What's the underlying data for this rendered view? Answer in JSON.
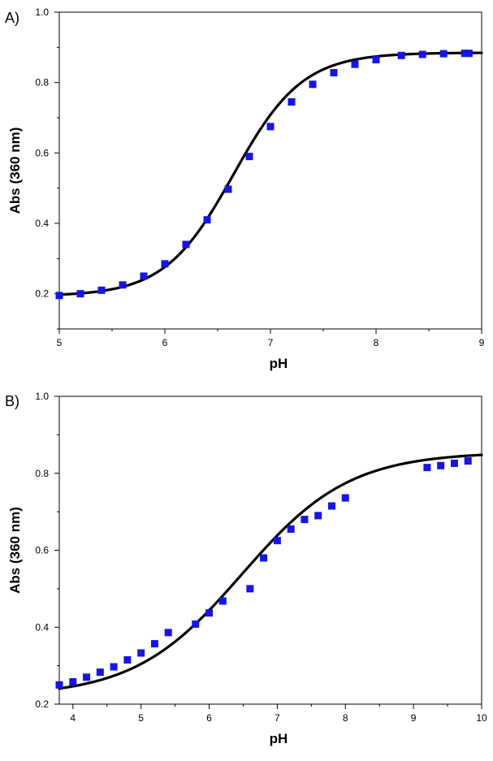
{
  "chart_data": [
    {
      "panel_label": "A)",
      "type": "scatter",
      "xlabel": "pH",
      "ylabel": "Abs (360 nm)",
      "xlim": [
        5,
        9
      ],
      "ylim": [
        0.1,
        1.0
      ],
      "x_ticks": [
        "5",
        "6",
        "7",
        "8",
        "9"
      ],
      "y_ticks": [
        "0.2",
        "0.4",
        "0.6",
        "0.8",
        "1.0"
      ],
      "series": [
        {
          "name": "data",
          "kind": "scatter",
          "color": "#1515e6",
          "x": [
            5.0,
            5.2,
            5.4,
            5.6,
            5.8,
            6.0,
            6.2,
            6.4,
            6.6,
            6.8,
            7.0,
            7.2,
            7.4,
            7.6,
            7.8,
            8.0,
            8.24,
            8.44,
            8.64,
            8.84,
            8.88
          ],
          "y": [
            0.195,
            0.2,
            0.21,
            0.225,
            0.25,
            0.285,
            0.34,
            0.41,
            0.497,
            0.59,
            0.675,
            0.745,
            0.795,
            0.828,
            0.852,
            0.865,
            0.877,
            0.88,
            0.882,
            0.883,
            0.883
          ]
        },
        {
          "name": "fit",
          "kind": "line",
          "color": "#000000",
          "model": {
            "bottom": 0.193,
            "top": 0.885,
            "pKa": 6.65,
            "slope": 1.33
          }
        }
      ]
    },
    {
      "panel_label": "B)",
      "type": "scatter",
      "xlabel": "pH",
      "ylabel": "Abs (360 nm)",
      "xlim": [
        3.8,
        10
      ],
      "ylim": [
        0.2,
        1.0
      ],
      "x_ticks": [
        "4",
        "5",
        "6",
        "7",
        "8",
        "9",
        "10"
      ],
      "y_ticks": [
        "0.2",
        "0.4",
        "0.6",
        "0.8",
        "1.0"
      ],
      "series": [
        {
          "name": "data",
          "kind": "scatter",
          "color": "#1515e6",
          "x": [
            3.8,
            4.0,
            4.2,
            4.4,
            4.6,
            4.8,
            5.0,
            5.2,
            5.4,
            5.8,
            6.0,
            6.2,
            6.6,
            6.8,
            7.0,
            7.2,
            7.4,
            7.6,
            7.8,
            8.0,
            9.2,
            9.4,
            9.6,
            9.8
          ],
          "y": [
            0.25,
            0.258,
            0.27,
            0.283,
            0.297,
            0.315,
            0.333,
            0.357,
            0.386,
            0.408,
            0.437,
            0.468,
            0.5,
            0.58,
            0.625,
            0.655,
            0.68,
            0.69,
            0.715,
            0.736,
            0.815,
            0.82,
            0.826,
            0.832
          ]
        },
        {
          "name": "fit",
          "kind": "line",
          "color": "#000000",
          "model": {
            "bottom": 0.22,
            "top": 0.855,
            "pKa": 6.48,
            "slope": 0.55
          }
        }
      ]
    }
  ]
}
